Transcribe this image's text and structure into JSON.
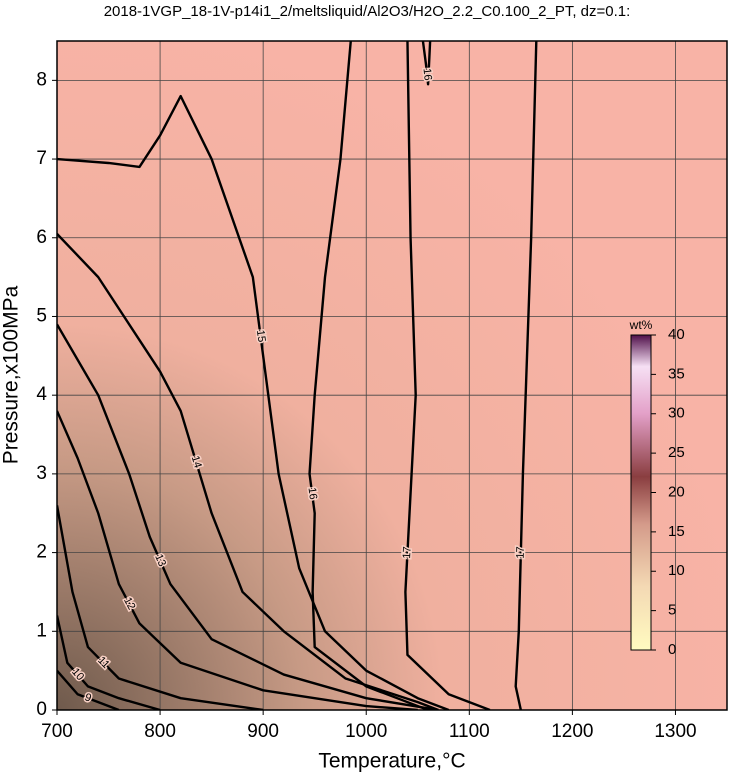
{
  "chart_data": {
    "type": "contour",
    "title": "2018-1VGP_18-1V-p14i1_2/meltsliquid/Al2O3/H2O_2.2_C0.100_2_PT, dz=0.1:",
    "x_label": "Temperature,°C",
    "y_label": "Pressure,x100MPa",
    "xlim": [
      700,
      1350
    ],
    "ylim": [
      0,
      8.5
    ],
    "xticks": [
      700,
      800,
      900,
      1000,
      1100,
      1200,
      1300
    ],
    "yticks": [
      0,
      1,
      2,
      3,
      4,
      5,
      6,
      7,
      8
    ],
    "grid": true,
    "color": "#000000",
    "contours": [
      {
        "level": 17,
        "x": [
          1165,
          1160,
          1152,
          1148,
          1145,
          1150
        ],
        "y": [
          8.5,
          6,
          3,
          1,
          0.3,
          0
        ]
      },
      {
        "level": 17,
        "x": [
          1040,
          1043,
          1048,
          1042,
          1038,
          1040,
          1080,
          1120
        ],
        "y": [
          8.5,
          6,
          4,
          2.5,
          1.5,
          0.7,
          0.2,
          0
        ]
      },
      {
        "level": 16,
        "x": [
          1055,
          1058,
          1060,
          1062
        ],
        "y": [
          8.5,
          8.2,
          7.95,
          8.5
        ]
      },
      {
        "level": 16,
        "x": [
          985,
          975,
          960,
          950,
          945,
          950,
          948,
          950,
          1000,
          1050,
          1060
        ],
        "y": [
          8.5,
          7,
          5.5,
          4,
          3,
          2.5,
          1.5,
          0.8,
          0.3,
          0.05,
          0
        ]
      },
      {
        "level": 15,
        "x": [
          700,
          750,
          780,
          800,
          820,
          850,
          890,
          905,
          915,
          935,
          960,
          1000,
          1050,
          1080
        ],
        "y": [
          7,
          6.95,
          6.9,
          7.3,
          7.8,
          7,
          5.5,
          4,
          3,
          1.8,
          1,
          0.5,
          0.15,
          0
        ]
      },
      {
        "level": 14,
        "x": [
          700,
          740,
          780,
          800,
          820,
          850,
          880,
          920,
          980,
          1050,
          1070
        ],
        "y": [
          6.05,
          5.5,
          4.7,
          4.3,
          3.8,
          2.5,
          1.5,
          1,
          0.4,
          0.1,
          0
        ]
      },
      {
        "level": 13,
        "x": [
          700,
          740,
          770,
          790,
          810,
          850,
          920,
          1000,
          1070
        ],
        "y": [
          4.9,
          4,
          3,
          2.2,
          1.6,
          0.9,
          0.45,
          0.15,
          0
        ]
      },
      {
        "level": 12,
        "x": [
          700,
          720,
          740,
          760,
          780,
          820,
          900,
          1000,
          1050
        ],
        "y": [
          3.8,
          3.2,
          2.5,
          1.6,
          1.1,
          0.6,
          0.25,
          0.05,
          0
        ]
      },
      {
        "level": 11,
        "x": [
          700,
          715,
          730,
          760,
          820,
          900
        ],
        "y": [
          2.6,
          1.5,
          0.8,
          0.4,
          0.15,
          0
        ]
      },
      {
        "level": 10,
        "x": [
          700,
          710,
          730,
          760,
          800
        ],
        "y": [
          1.2,
          0.6,
          0.3,
          0.15,
          0
        ]
      },
      {
        "level": 9,
        "x": [
          700,
          720,
          740,
          760
        ],
        "y": [
          0.5,
          0.2,
          0.1,
          0
        ]
      }
    ],
    "colorbar": {
      "label": "wt%",
      "lim": [
        0,
        40
      ],
      "ticks": [
        0,
        5,
        10,
        15,
        20,
        25,
        30,
        35,
        40
      ]
    }
  }
}
